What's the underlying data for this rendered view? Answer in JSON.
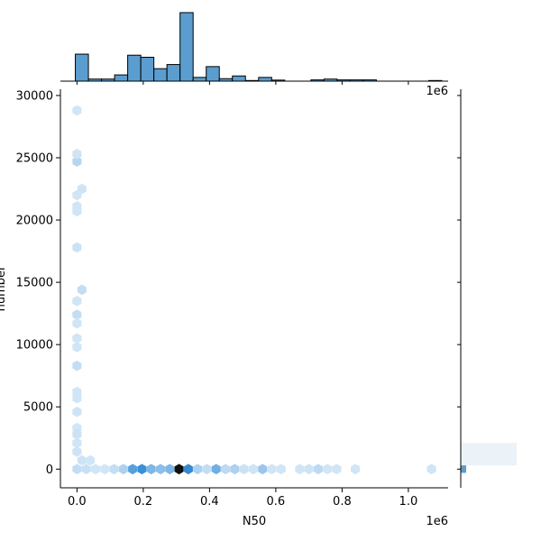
{
  "chart_data": {
    "type": "hexbin-joint",
    "title": "",
    "xlabel": "N50",
    "ylabel": "number",
    "x_offset_text": "1e6",
    "top_offset_text": "1e6",
    "xlim": [
      -0.05,
      1.12
    ],
    "ylim": [
      -1500,
      30500
    ],
    "x_ticks": [
      0.0,
      0.2,
      0.4,
      0.6,
      0.8,
      1.0
    ],
    "x_tick_labels": [
      "0.0",
      "0.2",
      "0.4",
      "0.6",
      "0.8",
      "1.0"
    ],
    "y_ticks": [
      0,
      5000,
      10000,
      15000,
      20000,
      25000,
      30000
    ],
    "y_tick_labels": [
      "0",
      "5000",
      "10000",
      "15000",
      "20000",
      "25000",
      "30000"
    ],
    "colors": {
      "bar": "#5b9dcf",
      "hex_dark": "#111111",
      "hex_mid": "#3a8fd9",
      "hex_light": "#deedf8"
    },
    "grid": false,
    "hexbins": [
      {
        "x": 0.0,
        "y": 28800,
        "d": 0.05
      },
      {
        "x": 0.0,
        "y": 24700,
        "d": 0.15
      },
      {
        "x": 0.0,
        "y": 25300,
        "d": 0.06
      },
      {
        "x": 0.015,
        "y": 22500,
        "d": 0.06
      },
      {
        "x": 0.0,
        "y": 22000,
        "d": 0.05
      },
      {
        "x": 0.0,
        "y": 21100,
        "d": 0.05
      },
      {
        "x": 0.0,
        "y": 20700,
        "d": 0.05
      },
      {
        "x": 0.0,
        "y": 17800,
        "d": 0.07
      },
      {
        "x": 0.015,
        "y": 14400,
        "d": 0.1
      },
      {
        "x": 0.0,
        "y": 13500,
        "d": 0.05
      },
      {
        "x": 0.0,
        "y": 12400,
        "d": 0.1
      },
      {
        "x": 0.0,
        "y": 11700,
        "d": 0.05
      },
      {
        "x": 0.0,
        "y": 10500,
        "d": 0.05
      },
      {
        "x": 0.0,
        "y": 9800,
        "d": 0.05
      },
      {
        "x": 0.0,
        "y": 8300,
        "d": 0.1
      },
      {
        "x": 0.0,
        "y": 6200,
        "d": 0.05
      },
      {
        "x": 0.0,
        "y": 5700,
        "d": 0.05
      },
      {
        "x": 0.0,
        "y": 4600,
        "d": 0.06
      },
      {
        "x": 0.0,
        "y": 3300,
        "d": 0.05
      },
      {
        "x": 0.0,
        "y": 2800,
        "d": 0.07
      },
      {
        "x": 0.0,
        "y": 2100,
        "d": 0.05
      },
      {
        "x": 0.0,
        "y": 1400,
        "d": 0.06
      },
      {
        "x": 0.015,
        "y": 700,
        "d": 0.06
      },
      {
        "x": 0.04,
        "y": 700,
        "d": 0.05
      },
      {
        "x": 0.0,
        "y": 0,
        "d": 0.1
      },
      {
        "x": 0.028,
        "y": 0,
        "d": 0.08
      },
      {
        "x": 0.056,
        "y": 0,
        "d": 0.05
      },
      {
        "x": 0.084,
        "y": 0,
        "d": 0.05
      },
      {
        "x": 0.112,
        "y": 0,
        "d": 0.1
      },
      {
        "x": 0.14,
        "y": 0,
        "d": 0.18
      },
      {
        "x": 0.168,
        "y": 0,
        "d": 0.5
      },
      {
        "x": 0.196,
        "y": 0,
        "d": 0.6
      },
      {
        "x": 0.224,
        "y": 0,
        "d": 0.35
      },
      {
        "x": 0.252,
        "y": 0,
        "d": 0.3
      },
      {
        "x": 0.28,
        "y": 0,
        "d": 0.35
      },
      {
        "x": 0.308,
        "y": 0,
        "d": 1.0
      },
      {
        "x": 0.336,
        "y": 0,
        "d": 0.62
      },
      {
        "x": 0.364,
        "y": 0,
        "d": 0.18
      },
      {
        "x": 0.392,
        "y": 0,
        "d": 0.1
      },
      {
        "x": 0.42,
        "y": 0,
        "d": 0.4
      },
      {
        "x": 0.448,
        "y": 0,
        "d": 0.12
      },
      {
        "x": 0.476,
        "y": 0,
        "d": 0.18
      },
      {
        "x": 0.504,
        "y": 0,
        "d": 0.07
      },
      {
        "x": 0.532,
        "y": 0,
        "d": 0.06
      },
      {
        "x": 0.56,
        "y": 0,
        "d": 0.25
      },
      {
        "x": 0.588,
        "y": 0,
        "d": 0.05
      },
      {
        "x": 0.616,
        "y": 0,
        "d": 0.05
      },
      {
        "x": 0.672,
        "y": 0,
        "d": 0.05
      },
      {
        "x": 0.7,
        "y": 0,
        "d": 0.06
      },
      {
        "x": 0.728,
        "y": 0,
        "d": 0.12
      },
      {
        "x": 0.756,
        "y": 0,
        "d": 0.05
      },
      {
        "x": 0.784,
        "y": 0,
        "d": 0.05
      },
      {
        "x": 0.84,
        "y": 0,
        "d": 0.05
      },
      {
        "x": 1.07,
        "y": 0,
        "d": 0.05
      }
    ],
    "x_hist": {
      "bin_start": -0.005,
      "bin_width": 0.0395,
      "counts": [
        130,
        10,
        10,
        30,
        125,
        115,
        60,
        80,
        330,
        18,
        70,
        12,
        25,
        3,
        18,
        5,
        0,
        0,
        6,
        10,
        6,
        6,
        6,
        0,
        0,
        0,
        0,
        3
      ]
    },
    "y_hist": {
      "bin_start": -300,
      "bin_width": 600,
      "counts": [
        100,
        4,
        1,
        1,
        0,
        0,
        0,
        0,
        0,
        0
      ]
    }
  }
}
